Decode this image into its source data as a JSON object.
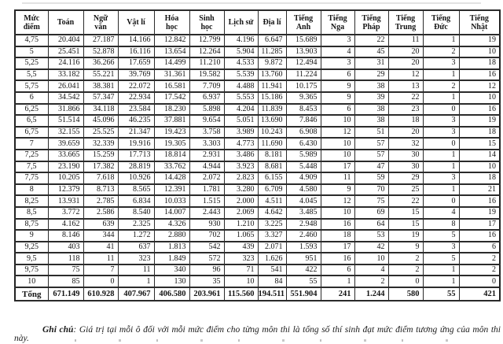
{
  "table": {
    "columns": [
      "Mức\nđiểm",
      "Toán",
      "Ngữ\nvăn",
      "Vật lí",
      "Hóa\nhọc",
      "Sinh\nhọc",
      "Lịch sử",
      "Địa lí",
      "Tiếng\nAnh",
      "Tiếng\nNga",
      "Tiếng\nPháp",
      "Tiếng\nTrung",
      "Tiếng\nĐức",
      "Tiếng\nNhật"
    ],
    "rows": [
      {
        "level": "4,75",
        "values": [
          "20.404",
          "27.187",
          "14.166",
          "12.842",
          "12.799",
          "4.196",
          "6.647",
          "15.689",
          "3",
          "22",
          "11",
          "1",
          "19"
        ]
      },
      {
        "level": "5",
        "values": [
          "25.451",
          "52.878",
          "16.116",
          "13.654",
          "12.264",
          "5.904",
          "11.285",
          "13.903",
          "4",
          "45",
          "20",
          "2",
          "10"
        ]
      },
      {
        "level": "5,25",
        "values": [
          "24.116",
          "36.266",
          "17.659",
          "14.499",
          "11.210",
          "4.533",
          "9.872",
          "12.494",
          "3",
          "31",
          "20",
          "3",
          "18"
        ]
      },
      {
        "level": "5,5",
        "values": [
          "33.182",
          "55.221",
          "39.769",
          "31.361",
          "19.582",
          "5.539",
          "13.760",
          "11.224",
          "6",
          "29",
          "12",
          "1",
          "16"
        ]
      },
      {
        "level": "5,75",
        "values": [
          "26.041",
          "38.381",
          "22.072",
          "16.581",
          "7.709",
          "4.488",
          "11.941",
          "10.175",
          "9",
          "38",
          "13",
          "2",
          "12"
        ]
      },
      {
        "level": "6",
        "values": [
          "34.542",
          "57.347",
          "22.934",
          "17.542",
          "6.937",
          "5.553",
          "15.186",
          "9.365",
          "9",
          "39",
          "22",
          "1",
          "10"
        ]
      },
      {
        "level": "6,25",
        "values": [
          "31.866",
          "34.118",
          "23.584",
          "18.230",
          "5.898",
          "4.204",
          "11.839",
          "8.453",
          "6",
          "38",
          "23",
          "0",
          "16"
        ]
      },
      {
        "level": "6,5",
        "values": [
          "51.514",
          "45.096",
          "46.235",
          "37.881",
          "9.654",
          "5.051",
          "13.690",
          "7.846",
          "10",
          "38",
          "18",
          "3",
          "19"
        ]
      },
      {
        "level": "6,75",
        "values": [
          "32.155",
          "25.525",
          "21.347",
          "19.423",
          "3.758",
          "3.989",
          "10.243",
          "6.908",
          "12",
          "51",
          "20",
          "3",
          "18"
        ]
      },
      {
        "level": "7",
        "values": [
          "39.659",
          "32.339",
          "19.916",
          "19.305",
          "3.303",
          "4.773",
          "11.690",
          "6.430",
          "10",
          "57",
          "32",
          "0",
          "15"
        ]
      },
      {
        "level": "7,25",
        "values": [
          "33.665",
          "15.259",
          "17.713",
          "18.814",
          "2.931",
          "3.486",
          "8.181",
          "5.989",
          "10",
          "57",
          "30",
          "1",
          "14"
        ]
      },
      {
        "level": "7,5",
        "values": [
          "23.190",
          "17.382",
          "28.819",
          "33.762",
          "4.944",
          "3.923",
          "8.681",
          "5.448",
          "17",
          "47",
          "30",
          "1",
          "10"
        ]
      },
      {
        "level": "7,75",
        "values": [
          "10.205",
          "7.618",
          "10.926",
          "14.428",
          "2.072",
          "2.823",
          "6.155",
          "4.909",
          "11",
          "59",
          "29",
          "3",
          "18"
        ]
      },
      {
        "level": "8",
        "values": [
          "12.379",
          "8.713",
          "8.565",
          "12.391",
          "1.781",
          "3.280",
          "6.709",
          "4.580",
          "9",
          "70",
          "25",
          "1",
          "21"
        ]
      },
      {
        "level": "8,25",
        "values": [
          "13.931",
          "2.785",
          "6.834",
          "10.033",
          "1.515",
          "2.000",
          "4.511",
          "4.045",
          "12",
          "75",
          "22",
          "0",
          "16"
        ]
      },
      {
        "level": "8,5",
        "values": [
          "3.772",
          "2.586",
          "8.540",
          "14.007",
          "2.443",
          "2.069",
          "4.642",
          "3.485",
          "10",
          "69",
          "15",
          "4",
          "19"
        ]
      },
      {
        "level": "8,75",
        "values": [
          "4.162",
          "639",
          "2.325",
          "4.326",
          "930",
          "1.210",
          "3.225",
          "2.948",
          "16",
          "64",
          "15",
          "8",
          "17"
        ]
      },
      {
        "level": "9",
        "values": [
          "8.146",
          "344",
          "1.272",
          "2.880",
          "702",
          "1.065",
          "3.327",
          "2.460",
          "18",
          "53",
          "19",
          "5",
          "16"
        ]
      },
      {
        "level": "9,25",
        "values": [
          "403",
          "41",
          "637",
          "1.813",
          "542",
          "439",
          "2.071",
          "1.593",
          "17",
          "42",
          "9",
          "3",
          "6"
        ]
      },
      {
        "level": "9,5",
        "values": [
          "118",
          "11",
          "323",
          "1.849",
          "572",
          "323",
          "1.626",
          "951",
          "16",
          "10",
          "2",
          "5",
          "2"
        ]
      },
      {
        "level": "9,75",
        "values": [
          "75",
          "7",
          "11",
          "340",
          "96",
          "71",
          "541",
          "422",
          "6",
          "4",
          "2",
          "1",
          "2"
        ]
      },
      {
        "level": "10",
        "values": [
          "85",
          "0",
          "1",
          "130",
          "35",
          "10",
          "84",
          "55",
          "1",
          "2",
          "0",
          "1",
          "0"
        ]
      }
    ],
    "total": {
      "label": "Tổng",
      "values": [
        "671.149",
        "610.928",
        "407.967",
        "406.580",
        "203.961",
        "115.560",
        "194.511",
        "551.904",
        "241",
        "1.244",
        "580",
        "55",
        "421"
      ]
    }
  },
  "note": {
    "label": "Ghi chú",
    "text": ": Giá trị tại mỗi ô đối với mỗi mức điểm cho từng môn thi là tổng số thí sinh đạt mức điểm tương ứng của môn thi này."
  }
}
